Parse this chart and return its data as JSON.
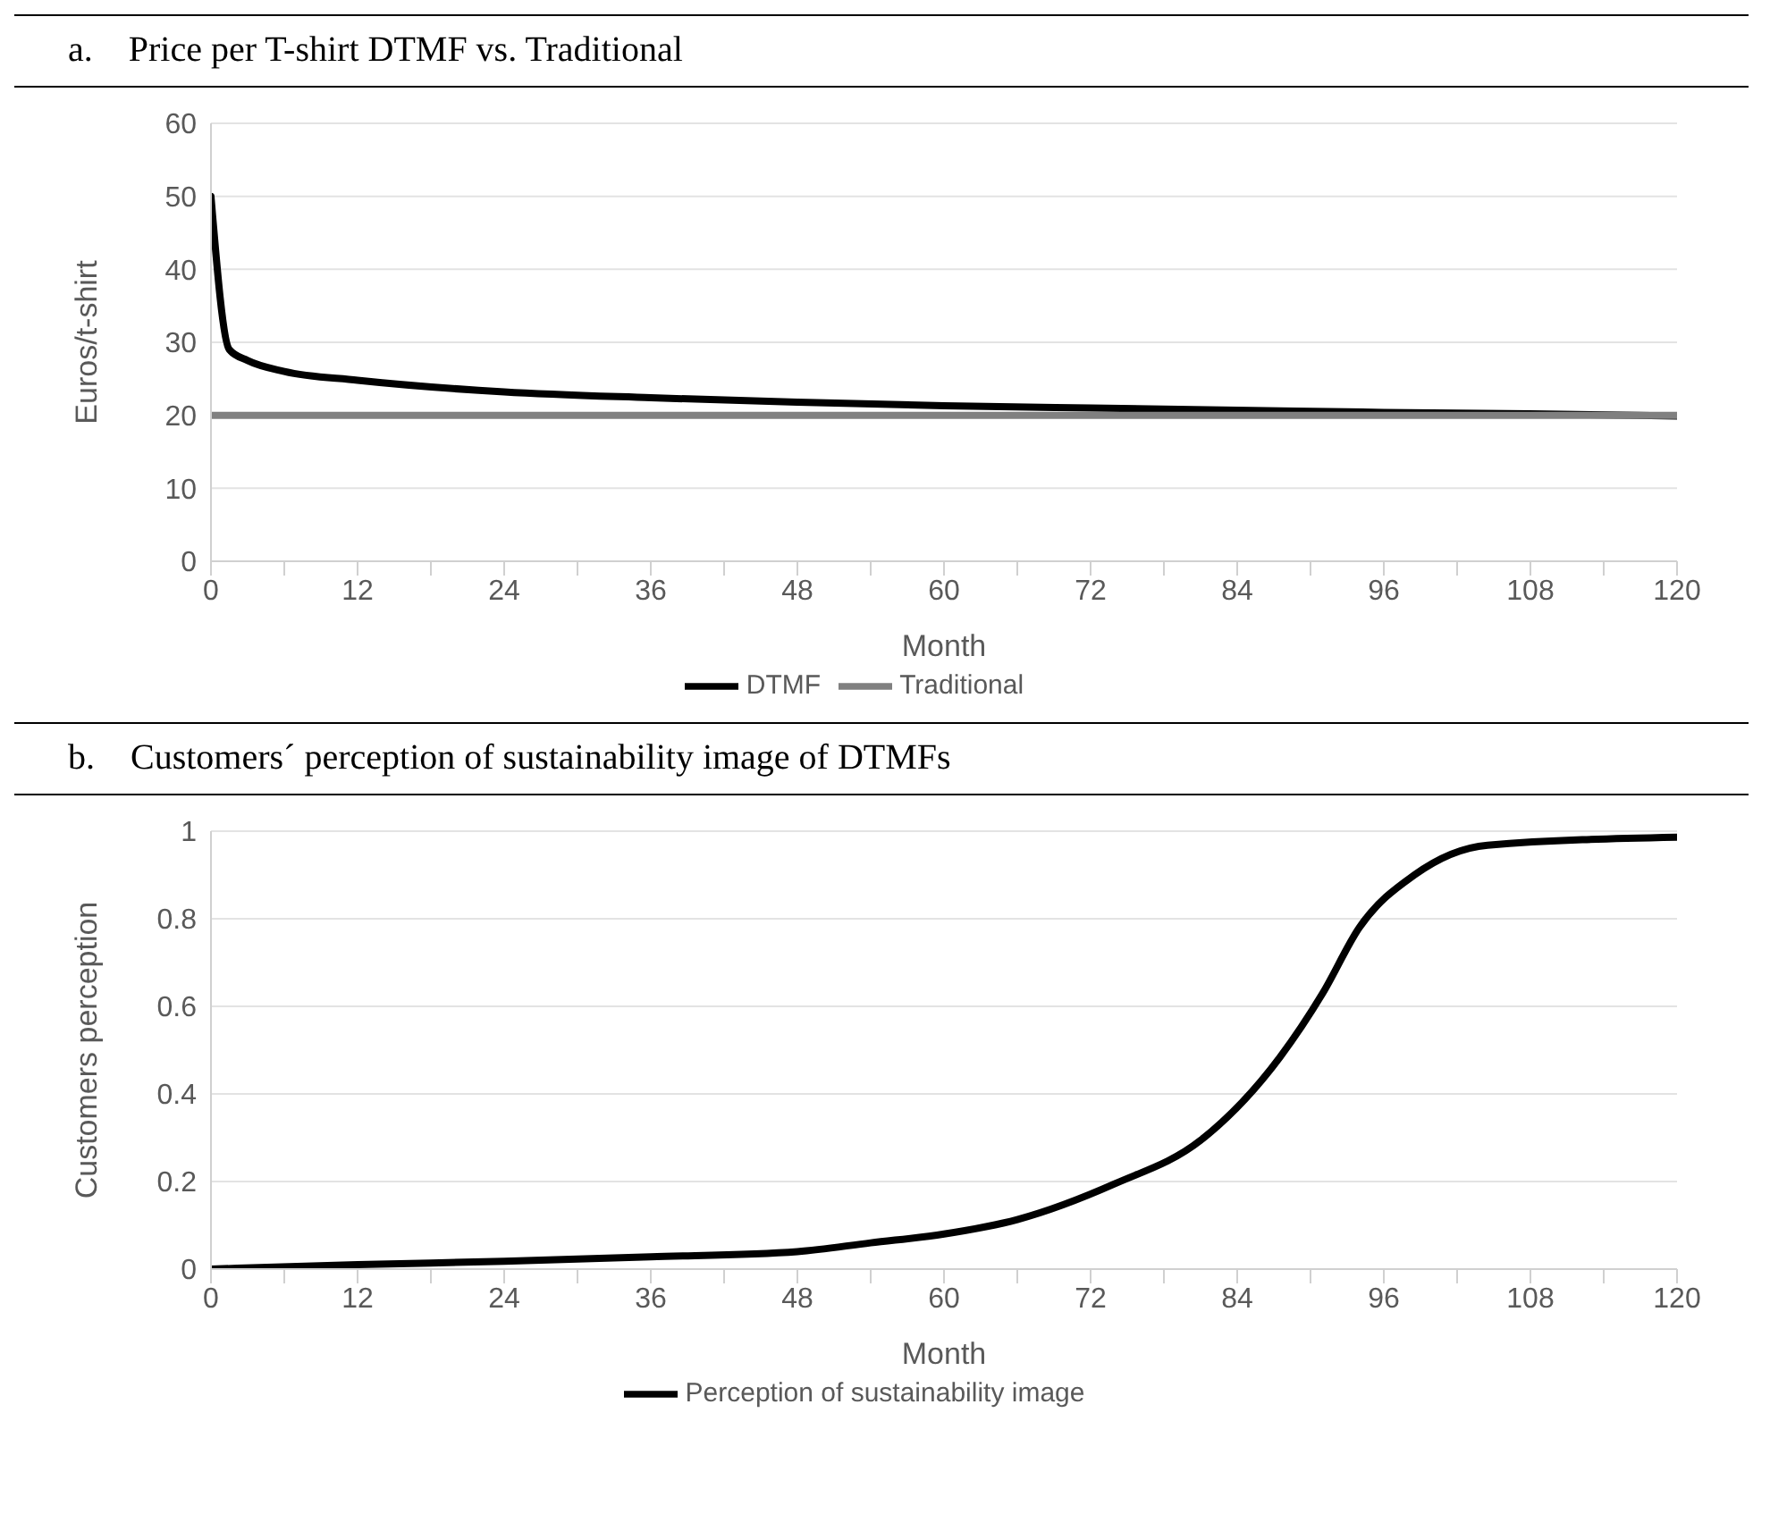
{
  "chart_data": [
    {
      "type": "line",
      "title": "a.    Price per T-shirt DTMF vs. Traditional",
      "xlabel": "Month",
      "ylabel": "Euros/t-shirt",
      "series": [
        {
          "name": "DTMF",
          "color": "#000000",
          "x": [
            0,
            1.5,
            3,
            6,
            12,
            24,
            36,
            48,
            60,
            72,
            84,
            96,
            108,
            120
          ],
          "values": [
            50,
            29,
            27.5,
            26,
            24.8,
            23.2,
            22.4,
            21.8,
            21.3,
            21,
            20.7,
            20.4,
            20.2,
            19.9
          ]
        },
        {
          "name": "Traditional",
          "color": "#808080",
          "x": [
            0,
            120
          ],
          "values": [
            20,
            20
          ]
        }
      ],
      "xlim": [
        0,
        120
      ],
      "xticks": [
        0,
        {
          "value": 6,
          "label": null
        },
        12,
        {
          "value": 18,
          "label": null
        },
        24,
        {
          "value": 30,
          "label": null
        },
        36,
        {
          "value": 42,
          "label": null
        },
        48,
        {
          "value": 54,
          "label": null
        },
        60,
        {
          "value": 66,
          "label": null
        },
        72,
        {
          "value": 78,
          "label": null
        },
        84,
        {
          "value": 90,
          "label": null
        },
        96,
        {
          "value": 102,
          "label": null
        },
        108,
        {
          "value": 114,
          "label": null
        },
        120
      ],
      "ylim": [
        0,
        60
      ],
      "yticks": [
        0,
        10,
        20,
        30,
        40,
        50,
        60
      ],
      "grid": "y",
      "legend": "bottom"
    },
    {
      "type": "line",
      "title": "b.    Customers´ perception of sustainability image of DTMFs",
      "xlabel": "Month",
      "ylabel": "Customers perception",
      "series": [
        {
          "name": "Perception of sustainability image",
          "color": "#000000",
          "x": [
            0,
            12,
            24,
            36,
            48,
            54,
            60,
            66,
            74,
            81,
            87.5,
            91,
            94,
            98.5,
            104.5,
            120
          ],
          "values": [
            0,
            0.01,
            0.018,
            0.028,
            0.04,
            0.06,
            0.08,
            0.113,
            0.195,
            0.294,
            0.484,
            0.63,
            0.78,
            0.9,
            0.968,
            0.986
          ]
        }
      ],
      "xlim": [
        0,
        120
      ],
      "xticks": [
        0,
        {
          "value": 6,
          "label": null
        },
        12,
        {
          "value": 18,
          "label": null
        },
        24,
        {
          "value": 30,
          "label": null
        },
        36,
        {
          "value": 42,
          "label": null
        },
        48,
        {
          "value": 54,
          "label": null
        },
        60,
        {
          "value": 66,
          "label": null
        },
        72,
        {
          "value": 78,
          "label": null
        },
        84,
        {
          "value": 90,
          "label": null
        },
        96,
        {
          "value": 102,
          "label": null
        },
        108,
        {
          "value": 114,
          "label": null
        },
        120
      ],
      "ylim": [
        0,
        1
      ],
      "yticks": [
        0,
        0.2,
        0.4,
        0.6,
        0.8,
        1
      ],
      "grid": "y",
      "legend": "bottom"
    }
  ]
}
